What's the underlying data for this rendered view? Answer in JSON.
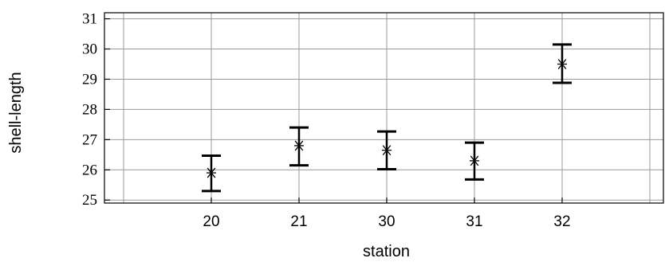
{
  "chart_data": {
    "type": "errorbar",
    "xlabel": "station",
    "ylabel": "shell-length",
    "categories": [
      "20",
      "21",
      "30",
      "31",
      "32"
    ],
    "mean": [
      25.9,
      26.8,
      26.65,
      26.3,
      29.5
    ],
    "lower": [
      25.3,
      26.15,
      26.02,
      25.68,
      28.88
    ],
    "upper": [
      26.47,
      27.4,
      27.27,
      26.9,
      30.15
    ],
    "ylim": [
      24.9,
      31.2
    ],
    "yticks": [
      "25",
      "26",
      "27",
      "28",
      "29",
      "30",
      "31"
    ],
    "grid": true,
    "marker": "asterisk",
    "line_color": "#000000",
    "grid_color": "#999999"
  }
}
